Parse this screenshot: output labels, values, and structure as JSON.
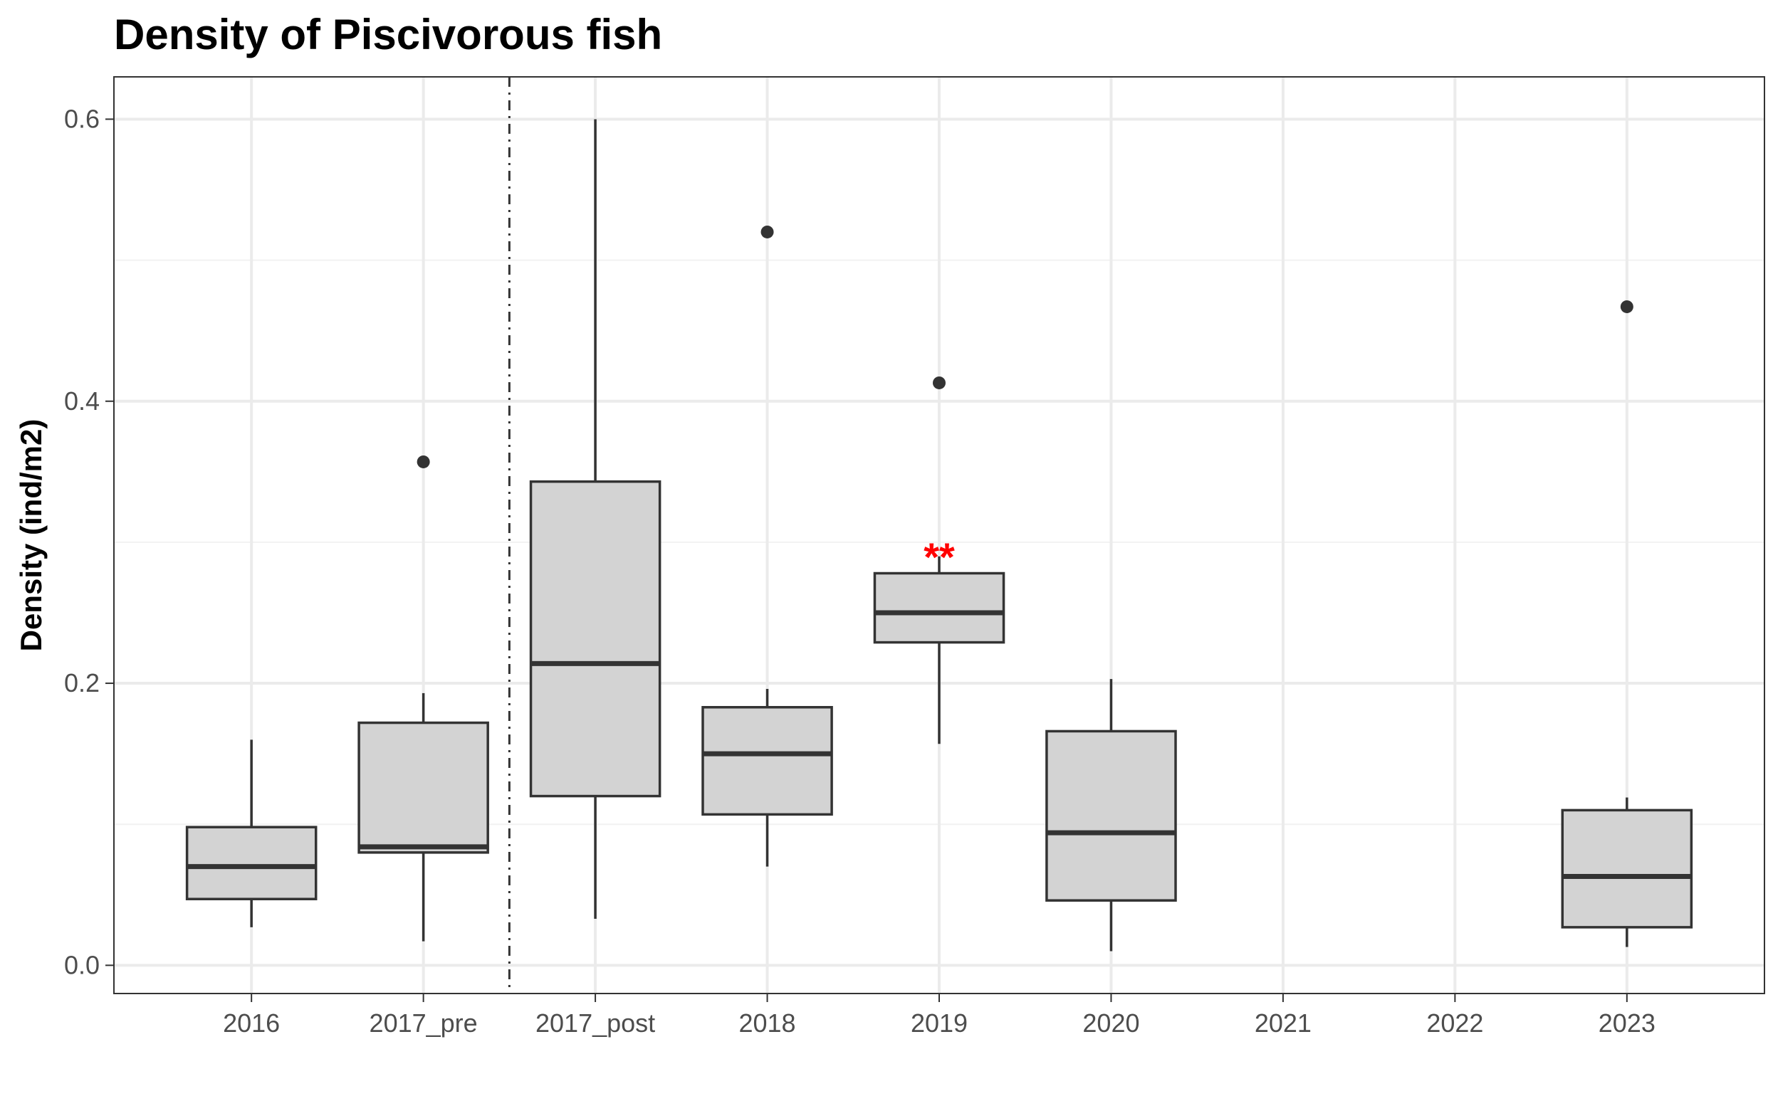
{
  "chart_data": {
    "type": "box",
    "title": "Density of Piscivorous fish",
    "xlabel": "",
    "ylabel": "Density (ind/m2)",
    "ylim": [
      -0.02,
      0.63
    ],
    "yticks": [
      0.0,
      0.2,
      0.4,
      0.6
    ],
    "ytick_labels": [
      "0.0",
      "0.2",
      "0.4",
      "0.6"
    ],
    "grid": true,
    "box_fill": "#d3d3d3",
    "line_color": "#333333",
    "categories": [
      "2016",
      "2017_pre",
      "2017_post",
      "2018",
      "2019",
      "2020",
      "2021",
      "2022",
      "2023"
    ],
    "boxes": [
      {
        "category": "2016",
        "q1": 0.047,
        "median": 0.07,
        "q3": 0.098,
        "whisker_low": 0.027,
        "whisker_high": 0.16,
        "outliers": []
      },
      {
        "category": "2017_pre",
        "q1": 0.08,
        "median": 0.084,
        "q3": 0.172,
        "whisker_low": 0.017,
        "whisker_high": 0.193,
        "outliers": [
          0.357
        ]
      },
      {
        "category": "2017_post",
        "q1": 0.12,
        "median": 0.214,
        "q3": 0.343,
        "whisker_low": 0.033,
        "whisker_high": 0.6,
        "outliers": []
      },
      {
        "category": "2018",
        "q1": 0.107,
        "median": 0.15,
        "q3": 0.183,
        "whisker_low": 0.07,
        "whisker_high": 0.196,
        "outliers": [
          0.52
        ]
      },
      {
        "category": "2019",
        "q1": 0.229,
        "median": 0.25,
        "q3": 0.278,
        "whisker_low": 0.157,
        "whisker_high": 0.29,
        "outliers": [
          0.413
        ]
      },
      {
        "category": "2020",
        "q1": 0.046,
        "median": 0.094,
        "q3": 0.166,
        "whisker_low": 0.01,
        "whisker_high": 0.203,
        "outliers": []
      },
      {
        "category": "2023",
        "q1": 0.027,
        "median": 0.063,
        "q3": 0.11,
        "whisker_low": 0.013,
        "whisker_high": 0.119,
        "outliers": [
          0.467
        ]
      }
    ],
    "annotations": [
      {
        "text": "**",
        "category": "2019",
        "y": 0.3,
        "color": "#ff0000"
      }
    ],
    "reference_line": {
      "between": [
        "2017_pre",
        "2017_post"
      ],
      "style": "dashdot"
    }
  }
}
